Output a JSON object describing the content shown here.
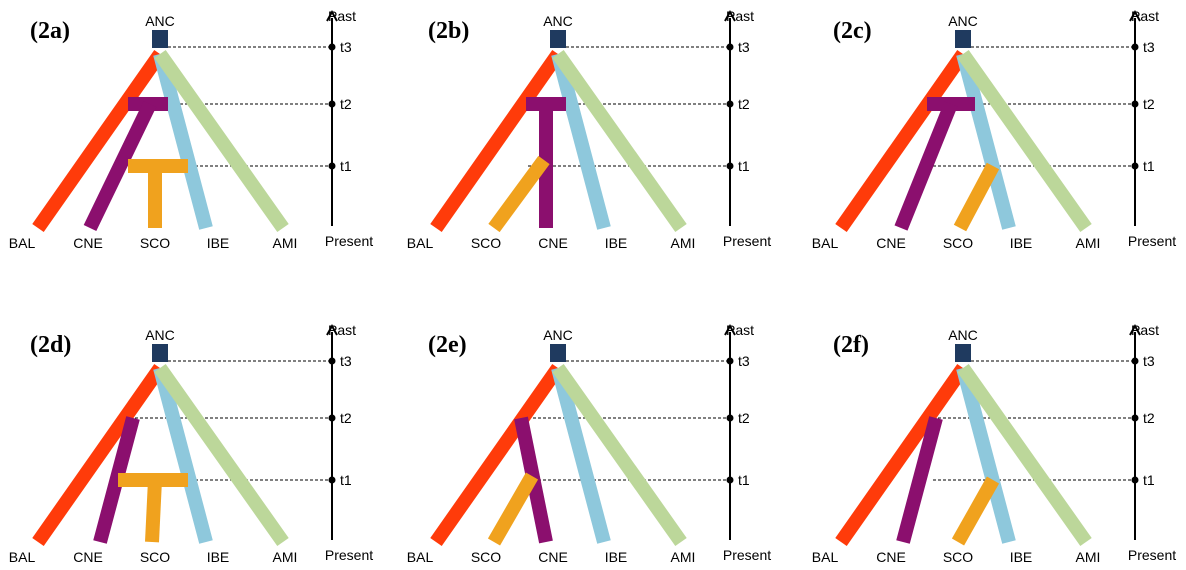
{
  "colors": {
    "BAL": "#ff3b0a",
    "CNE": "#8b0f6e",
    "SCO": "#f0a21e",
    "IBE": "#8ec8dc",
    "AMI": "#bcd79a",
    "ANC": "#1f3a5f"
  },
  "axis": {
    "past_label": "Past",
    "present_label": "Present",
    "time_labels": [
      "t3",
      "t2",
      "t1"
    ]
  },
  "root_label": "ANC",
  "panels": [
    {
      "id": "2a",
      "title": "(2a)",
      "leaves": [
        "BAL",
        "CNE",
        "SCO",
        "IBE",
        "AMI"
      ]
    },
    {
      "id": "2b",
      "title": "(2b)",
      "leaves": [
        "BAL",
        "SCO",
        "CNE",
        "IBE",
        "AMI"
      ]
    },
    {
      "id": "2c",
      "title": "(2c)",
      "leaves": [
        "BAL",
        "CNE",
        "SCO",
        "IBE",
        "AMI"
      ]
    },
    {
      "id": "2d",
      "title": "(2d)",
      "leaves": [
        "BAL",
        "CNE",
        "SCO",
        "IBE",
        "AMI"
      ]
    },
    {
      "id": "2e",
      "title": "(2e)",
      "leaves": [
        "BAL",
        "SCO",
        "CNE",
        "IBE",
        "AMI"
      ]
    },
    {
      "id": "2f",
      "title": "(2f)",
      "leaves": [
        "BAL",
        "CNE",
        "SCO",
        "IBE",
        "AMI"
      ]
    }
  ]
}
